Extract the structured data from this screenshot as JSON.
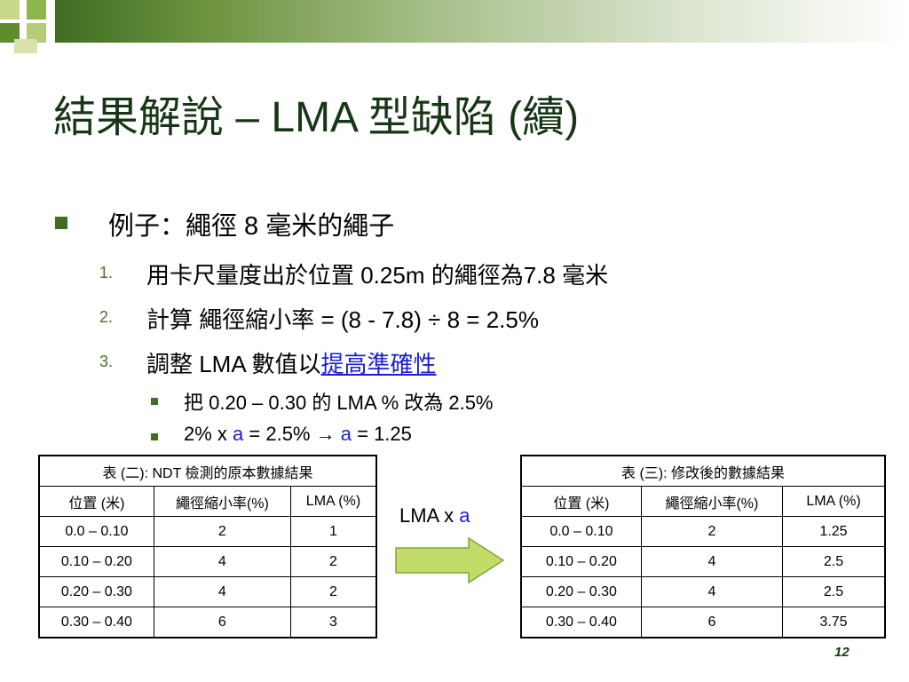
{
  "title": "結果解說 – LMA 型缺陷 (續)",
  "bullet": "例子：繩徑 8 毫米的繩子",
  "numbered": [
    {
      "marker": "1.",
      "text": "用卡尺量度出於位置 0.25m 的繩徑為7.8 毫米"
    },
    {
      "marker": "2.",
      "text": "計算 繩徑縮小率 = (8 - 7.8) ÷ 8 = 2.5%"
    },
    {
      "marker": "3.",
      "prefix": "調整 LMA 數值以",
      "link": "提高準確性"
    }
  ],
  "sub_bullets": {
    "first": "把 0.20 – 0.30 的 LMA % 改為 2.5%",
    "second_a": "2% x ",
    "var_a": "a",
    "second_b": " = 2.5% ",
    "arrow_symbol": "→",
    "second_c": " = 1.25"
  },
  "table1": {
    "caption": "表 (二): NDT 檢測的原本數據結果",
    "headers": [
      "位置 (米)",
      "繩徑縮小率(%)",
      "LMA (%)"
    ],
    "rows": [
      [
        "0.0 – 0.10",
        "2",
        "1"
      ],
      [
        "0.10 – 0.20",
        "4",
        "2"
      ],
      [
        "0.20 – 0.30",
        "4",
        "2"
      ],
      [
        "0.30 – 0.40",
        "6",
        "3"
      ]
    ]
  },
  "table2": {
    "caption": "表 (三): 修改後的數據結果",
    "headers": [
      "位置 (米)",
      "繩徑縮小率(%)",
      "LMA (%)"
    ],
    "rows": [
      [
        "0.0 – 0.10",
        "2",
        "1.25"
      ],
      [
        "0.10 – 0.20",
        "4",
        "2.5"
      ],
      [
        "0.20 – 0.30",
        "4",
        "2.5"
      ],
      [
        "0.30 – 0.40",
        "6",
        "3.75"
      ]
    ]
  },
  "lma_label": {
    "prefix": "LMA x ",
    "var": "a"
  },
  "page_number": "12",
  "colors": {
    "title": "#173616",
    "accent": "#3f6d22",
    "link": "#1a1fd6",
    "arrow_fill": "#c2dc6a"
  }
}
